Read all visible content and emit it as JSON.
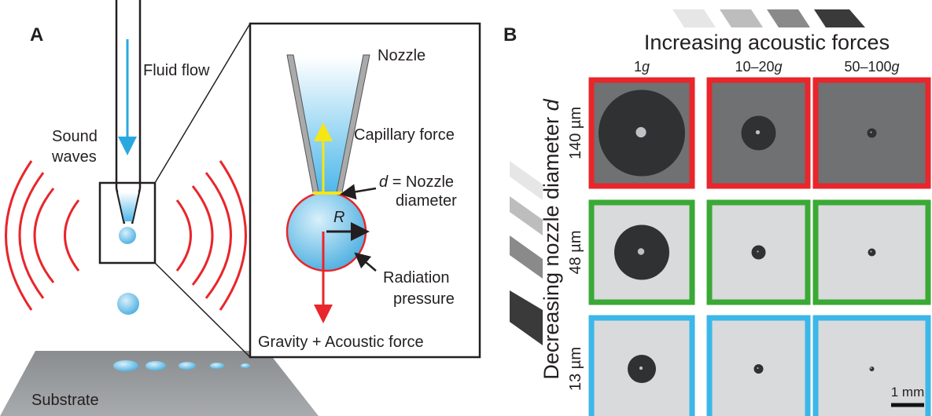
{
  "panel_a": {
    "label": "A",
    "fluid_flow": "Fluid flow",
    "sound_waves": [
      "Sound",
      "waves"
    ],
    "substrate": "Substrate",
    "inset": {
      "nozzle": "Nozzle",
      "capillary_force": "Capillary force",
      "nozzle_diameter": {
        "symbol": "d",
        "text": [
          "= Nozzle",
          "diameter"
        ]
      },
      "radius": "R",
      "radiation_pressure": [
        "Radiation",
        "pressure"
      ],
      "forces": "Gravity + Acoustic force"
    }
  },
  "panel_b": {
    "label": "B",
    "x_title": "Increasing acoustic forces",
    "columns": [
      {
        "value": "1",
        "unit": "g"
      },
      {
        "value": "10–20",
        "unit": "g"
      },
      {
        "value": "50–100",
        "unit": "g"
      }
    ],
    "y_title": {
      "text": "Decreasing nozzle diameter",
      "symbol": "d"
    },
    "rows": [
      {
        "label": "140 µm",
        "color": "#e8262b"
      },
      {
        "label": "48 µm",
        "color": "#3aa935"
      },
      {
        "label": "13 µm",
        "color": "#3bb7e8"
      }
    ],
    "scale_bar": "1 mm"
  }
}
